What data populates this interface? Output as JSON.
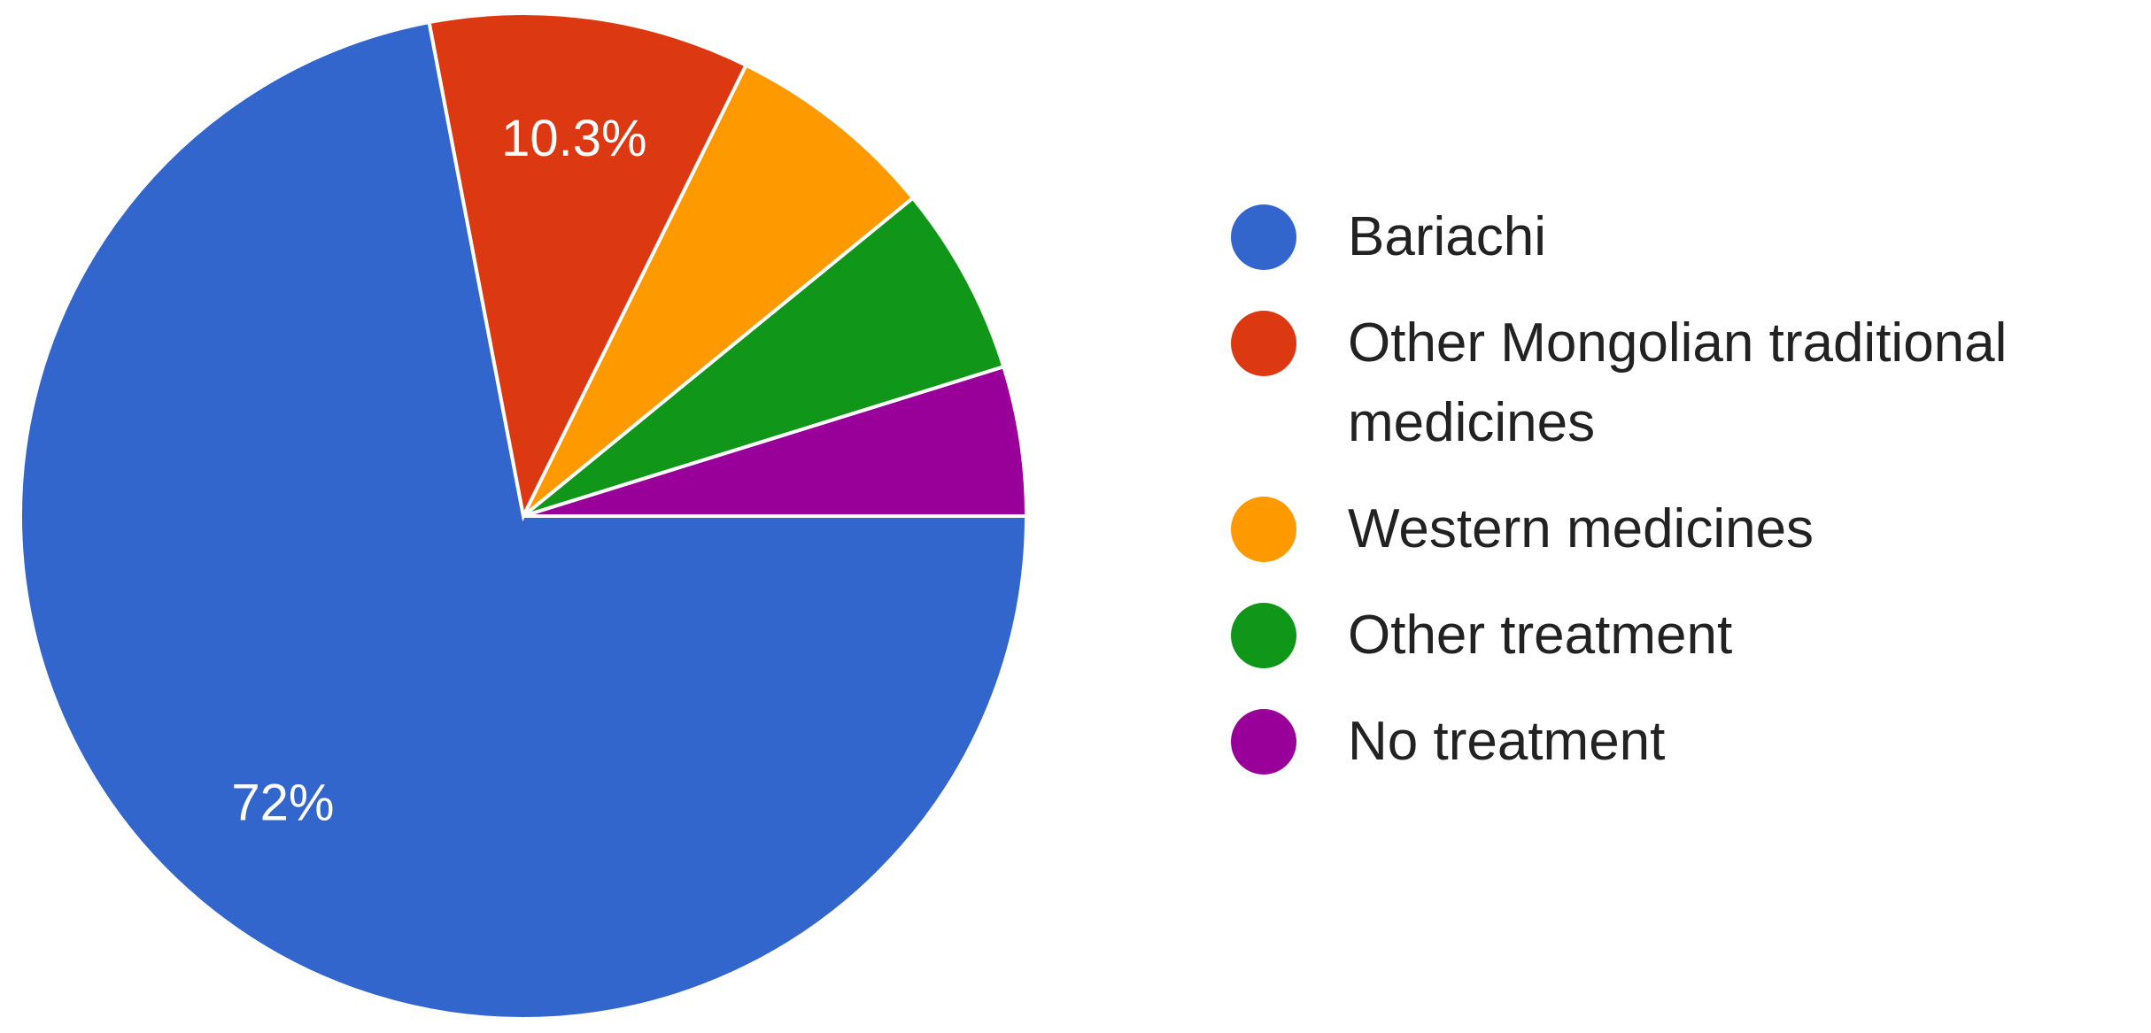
{
  "chart_data": {
    "type": "pie",
    "categories": [
      "Bariachi",
      "Other Mongolian traditional medicines",
      "Western medicines",
      "Other treatment",
      "No treatment"
    ],
    "values": [
      72,
      10.3,
      6.8,
      6.1,
      4.8
    ],
    "value_labels": [
      "72%",
      "10.3%",
      null,
      null,
      null
    ],
    "colors": [
      "#3366cc",
      "#dc3912",
      "#ff9900",
      "#109618",
      "#990099"
    ],
    "legend": "right"
  }
}
